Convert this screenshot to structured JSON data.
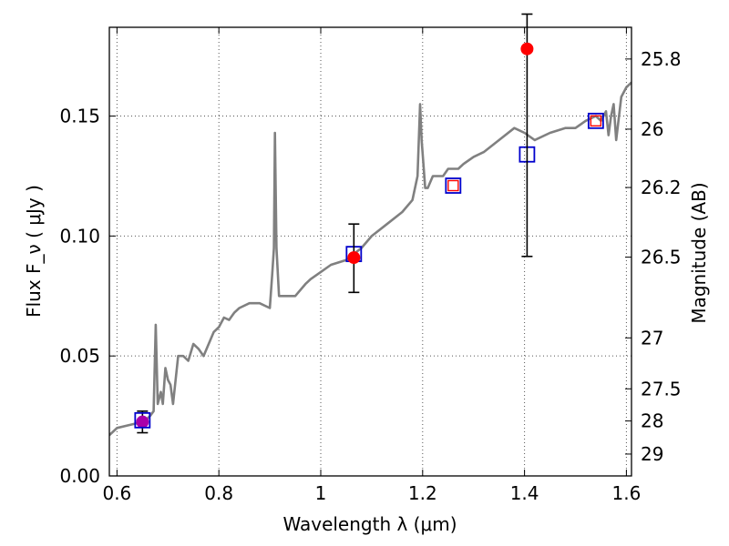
{
  "chart_data": {
    "type": "line",
    "xlabel": "Wavelength  λ (μm)",
    "ylabel": "Flux  F_ν  ( μJy )",
    "y2label": "Magnitude (AB)",
    "xlim": [
      0.585,
      1.61
    ],
    "ylim": [
      0.0,
      0.187
    ],
    "grid": true,
    "x_ticks": [
      {
        "value": 0.6,
        "label": "0.6"
      },
      {
        "value": 0.8,
        "label": "0.8"
      },
      {
        "value": 1.0,
        "label": "1"
      },
      {
        "value": 1.2,
        "label": "1.2"
      },
      {
        "value": 1.4,
        "label": "1.4"
      },
      {
        "value": 1.6,
        "label": "1.6"
      }
    ],
    "y_ticks": [
      {
        "value": 0.0,
        "label": "0.00"
      },
      {
        "value": 0.05,
        "label": "0.05"
      },
      {
        "value": 0.1,
        "label": "0.10"
      },
      {
        "value": 0.15,
        "label": "0.15"
      }
    ],
    "y2_ticks": [
      {
        "value": 25.8,
        "label": "25.8"
      },
      {
        "value": 26.0,
        "label": "26"
      },
      {
        "value": 26.2,
        "label": "26.2"
      },
      {
        "value": 26.5,
        "label": "26.5"
      },
      {
        "value": 27.0,
        "label": "27"
      },
      {
        "value": 27.5,
        "label": "27.5"
      },
      {
        "value": 28.0,
        "label": "28"
      },
      {
        "value": 29.0,
        "label": "29"
      }
    ],
    "colors": {
      "template": "#808080",
      "observed": "#ff0000",
      "model": "#0000cc",
      "magenta": "#aa00aa",
      "errorbar": "#000000",
      "grid": "#555555"
    },
    "series": [
      {
        "kind": "template_spectrum",
        "x": [
          0.585,
          0.6,
          0.62,
          0.64,
          0.65,
          0.655,
          0.665,
          0.672,
          0.676,
          0.68,
          0.686,
          0.69,
          0.695,
          0.7,
          0.705,
          0.71,
          0.72,
          0.73,
          0.74,
          0.75,
          0.76,
          0.77,
          0.78,
          0.79,
          0.8,
          0.81,
          0.82,
          0.83,
          0.84,
          0.86,
          0.88,
          0.9,
          0.905,
          0.908,
          0.91,
          0.913,
          0.918,
          0.93,
          0.95,
          0.97,
          0.98,
          1.0,
          1.02,
          1.05,
          1.08,
          1.1,
          1.13,
          1.16,
          1.18,
          1.19,
          1.195,
          1.198,
          1.205,
          1.21,
          1.22,
          1.24,
          1.25,
          1.27,
          1.28,
          1.3,
          1.32,
          1.35,
          1.38,
          1.4,
          1.42,
          1.45,
          1.48,
          1.5,
          1.52,
          1.54,
          1.55,
          1.56,
          1.565,
          1.57,
          1.575,
          1.58,
          1.59,
          1.6,
          1.61
        ],
        "y": [
          0.017,
          0.02,
          0.021,
          0.022,
          0.022,
          0.023,
          0.025,
          0.027,
          0.063,
          0.03,
          0.035,
          0.03,
          0.045,
          0.04,
          0.038,
          0.03,
          0.05,
          0.05,
          0.048,
          0.055,
          0.053,
          0.05,
          0.055,
          0.06,
          0.062,
          0.066,
          0.065,
          0.068,
          0.07,
          0.072,
          0.072,
          0.07,
          0.085,
          0.095,
          0.143,
          0.095,
          0.075,
          0.075,
          0.075,
          0.08,
          0.082,
          0.085,
          0.088,
          0.09,
          0.095,
          0.1,
          0.105,
          0.11,
          0.115,
          0.125,
          0.155,
          0.14,
          0.12,
          0.12,
          0.125,
          0.125,
          0.128,
          0.128,
          0.13,
          0.133,
          0.135,
          0.14,
          0.145,
          0.143,
          0.14,
          0.143,
          0.145,
          0.145,
          0.148,
          0.15,
          0.148,
          0.152,
          0.142,
          0.15,
          0.155,
          0.14,
          0.158,
          0.162,
          0.164
        ]
      },
      {
        "kind": "model_photometry",
        "marker": "open_square",
        "x": [
          0.65,
          1.065,
          1.26,
          1.405,
          1.54
        ],
        "y": [
          0.0232,
          0.0925,
          0.121,
          0.134,
          0.148
        ]
      },
      {
        "kind": "observed_photometry",
        "marker": "filled_circle",
        "x": [
          1.065,
          1.405
        ],
        "y": [
          0.091,
          0.178
        ],
        "yerr_low": [
          0.0765,
          0.0915
        ],
        "yerr_high": [
          0.105,
          0.1925
        ]
      },
      {
        "kind": "observed_small",
        "marker": "small_open_square",
        "x": [
          1.26,
          1.54
        ],
        "y": [
          0.121,
          0.148
        ]
      },
      {
        "kind": "magenta_point",
        "marker": "filled_circle",
        "x": [
          0.65
        ],
        "y": [
          0.0225
        ],
        "yerr_low": [
          0.018
        ],
        "yerr_high": [
          0.027
        ]
      }
    ]
  }
}
